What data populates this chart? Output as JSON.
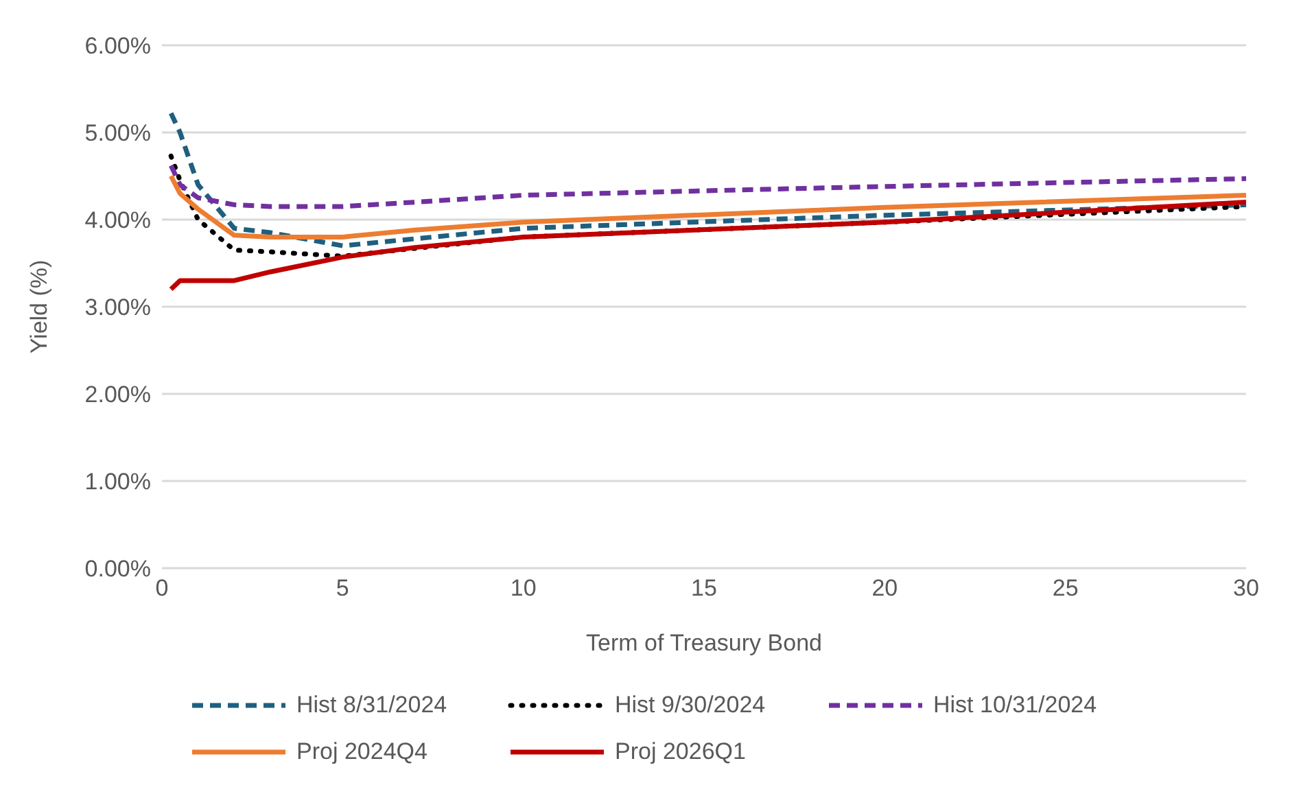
{
  "chart_data": {
    "type": "line",
    "xlabel": "Term of Treasury Bond",
    "ylabel": "Yield (%)",
    "x": [
      0.25,
      0.5,
      1,
      2,
      3,
      5,
      7,
      10,
      20,
      30
    ],
    "series": [
      {
        "name": "Hist 8/31/2024",
        "color": "#1f5f7f",
        "line_style": "dashed",
        "values": [
          5.22,
          5.0,
          4.4,
          3.9,
          3.85,
          3.7,
          3.78,
          3.9,
          4.05,
          4.17
        ]
      },
      {
        "name": "Hist 9/30/2024",
        "color": "#000000",
        "line_style": "dotted",
        "values": [
          4.73,
          4.45,
          4.0,
          3.65,
          3.63,
          3.58,
          3.67,
          3.8,
          3.97,
          4.15
        ]
      },
      {
        "name": "Hist 10/31/2024",
        "color": "#7030a0",
        "line_style": "dashed",
        "values": [
          4.62,
          4.4,
          4.25,
          4.17,
          4.15,
          4.15,
          4.2,
          4.28,
          4.38,
          4.47
        ]
      },
      {
        "name": "Proj 2024Q4",
        "color": "#ed7d31",
        "line_style": "solid",
        "values": [
          4.5,
          4.3,
          4.12,
          3.82,
          3.8,
          3.8,
          3.88,
          3.97,
          4.14,
          4.28
        ]
      },
      {
        "name": "Proj 2026Q1",
        "color": "#c00000",
        "line_style": "solid",
        "values": [
          3.2,
          3.3,
          3.3,
          3.3,
          3.4,
          3.57,
          3.68,
          3.8,
          3.97,
          4.2
        ]
      }
    ],
    "xlim": [
      0,
      30
    ],
    "xticks": [
      0,
      5,
      10,
      15,
      20,
      25,
      30
    ],
    "ylim": [
      0,
      6
    ],
    "yticks": [
      {
        "value": 0,
        "label": "0.00%"
      },
      {
        "value": 1,
        "label": "1.00%"
      },
      {
        "value": 2,
        "label": "2.00%"
      },
      {
        "value": 3,
        "label": "3.00%"
      },
      {
        "value": 4,
        "label": "4.00%"
      },
      {
        "value": 5,
        "label": "5.00%"
      },
      {
        "value": 6,
        "label": "6.00%"
      }
    ],
    "grid": "y",
    "legend": "bottom",
    "marker": "none"
  }
}
